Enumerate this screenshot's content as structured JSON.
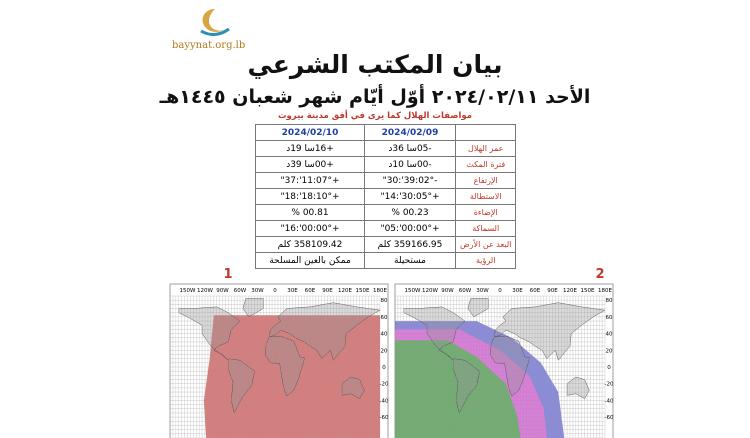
{
  "logo": {
    "text": "bayynat.org.lb"
  },
  "header": {
    "title": "بيان المكتب الشرعي",
    "subtitle": "الأحد ٢٠٢٤/٠٢/١١ أوّل أيّام شهر شعبان ١٤٤٥هـ",
    "caption": "مواصفات الهلال كما يرى في أفق مدينة بيروت"
  },
  "table": {
    "columns": [
      "2024/02/09",
      "2024/02/10"
    ],
    "rows": [
      [
        "عمر الهلال",
        "-05سا 36د",
        "+16سا 19د"
      ],
      [
        "فترة المكث",
        "-00سا 10د",
        "+00سا 39د"
      ],
      [
        "الإرتفاع",
        "-02°:39':30\"",
        "+07°:11':37\""
      ],
      [
        "الاستطالة",
        "+05°:30':14\"",
        "+10°:18':18\""
      ],
      [
        "الإضاءة",
        "00.23 %",
        "00.81 %"
      ],
      [
        "السماكة",
        "+00°:00':05\"",
        "+00°:00':16\""
      ],
      [
        "البعد عن الأرض",
        "359166.95 كلم",
        "358109.42 كلم"
      ],
      [
        "الرؤية",
        "مستحيلة",
        "ممكن بالعين المسلحة"
      ]
    ]
  },
  "maps": [
    {
      "number": "1"
    },
    {
      "number": "2"
    }
  ],
  "map_axes": {
    "lon_labels": [
      "150W",
      "120W",
      "90W",
      "60W",
      "30W",
      "0",
      "30E",
      "60E",
      "90E",
      "120E",
      "150E",
      "180E"
    ],
    "lat_labels": [
      "80",
      "60",
      "40",
      "20",
      "0",
      "-20",
      "-40",
      "-60"
    ]
  }
}
